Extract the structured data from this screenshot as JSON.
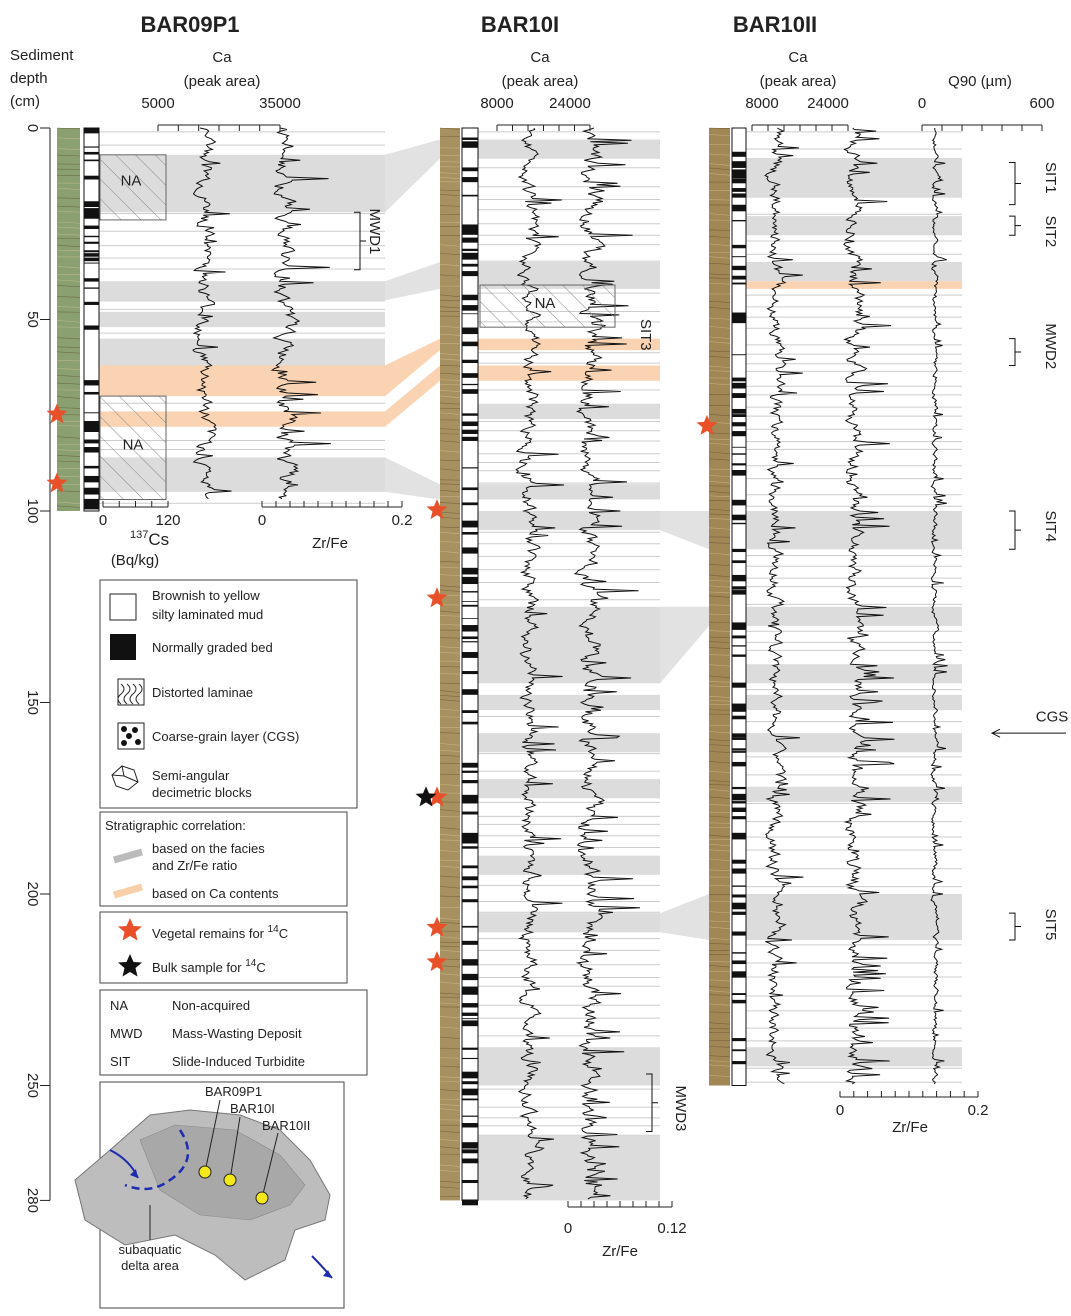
{
  "header": {
    "depth_label": [
      "Sediment",
      "depth",
      "(cm)"
    ]
  },
  "depth_axis": {
    "ticks": [
      "0",
      "50",
      "100",
      "150",
      "200",
      "250",
      "280"
    ]
  },
  "cores": [
    {
      "name": "BAR09P1",
      "ca_title": [
        "Ca",
        "(peak area)"
      ],
      "ca_ticks": [
        "5000",
        "35000"
      ],
      "cs_ticks": [
        "0",
        "120"
      ],
      "cs_label": [
        "137",
        "Cs",
        "(Bq/kg)"
      ],
      "zrfe_ticks": [
        "0",
        "0.2"
      ],
      "zrfe_label": "Zr/Fe",
      "annotations": [
        "NA",
        "NA",
        "MWD1"
      ]
    },
    {
      "name": "BAR10I",
      "ca_title": [
        "Ca",
        "(peak area)"
      ],
      "ca_ticks": [
        "8000",
        "24000"
      ],
      "zrfe_ticks": [
        "0",
        "0.12"
      ],
      "zrfe_label": "Zr/Fe",
      "annotations": [
        "NA",
        "SIT3",
        "MWD3"
      ]
    },
    {
      "name": "BAR10II",
      "ca_title": [
        "Ca",
        "(peak area)"
      ],
      "ca_ticks": [
        "8000",
        "24000"
      ],
      "q90_title": "Q90 (µm)",
      "q90_ticks": [
        "0",
        "600"
      ],
      "zrfe_ticks": [
        "0",
        "0.2"
      ],
      "zrfe_label": "Zr/Fe",
      "annotations": [
        "SIT1",
        "SIT2",
        "MWD2",
        "SIT4",
        "CGS",
        "SIT5"
      ]
    }
  ],
  "legend": {
    "facies": [
      [
        "Brownish to yellow",
        "silty laminated mud"
      ],
      [
        "Normally graded bed"
      ],
      [
        "Distorted laminae"
      ],
      [
        "Coarse-grain layer (CGS)"
      ],
      [
        "Semi-angular",
        "decimetric blocks"
      ]
    ],
    "correlation": {
      "title": "Stratigraphic correlation:",
      "items": [
        [
          "based on the facies",
          "and Zr/Fe ratio"
        ],
        [
          "based on Ca contents"
        ]
      ]
    },
    "c14": [
      {
        "text": "Vegetal remains for ",
        "sup": "14",
        "unit": "C"
      },
      {
        "text": "Bulk sample for ",
        "sup": "14",
        "unit": "C"
      }
    ],
    "abbreviations": [
      [
        "NA",
        "Non-acquired"
      ],
      [
        "MWD",
        "Mass-Wasting Deposit"
      ],
      [
        "SIT",
        "Slide-Induced Turbidite"
      ]
    ]
  },
  "map": {
    "labels": [
      "BAR09P1",
      "BAR10I",
      "BAR10II"
    ],
    "delta": [
      "subaquatic",
      "delta area"
    ]
  }
}
